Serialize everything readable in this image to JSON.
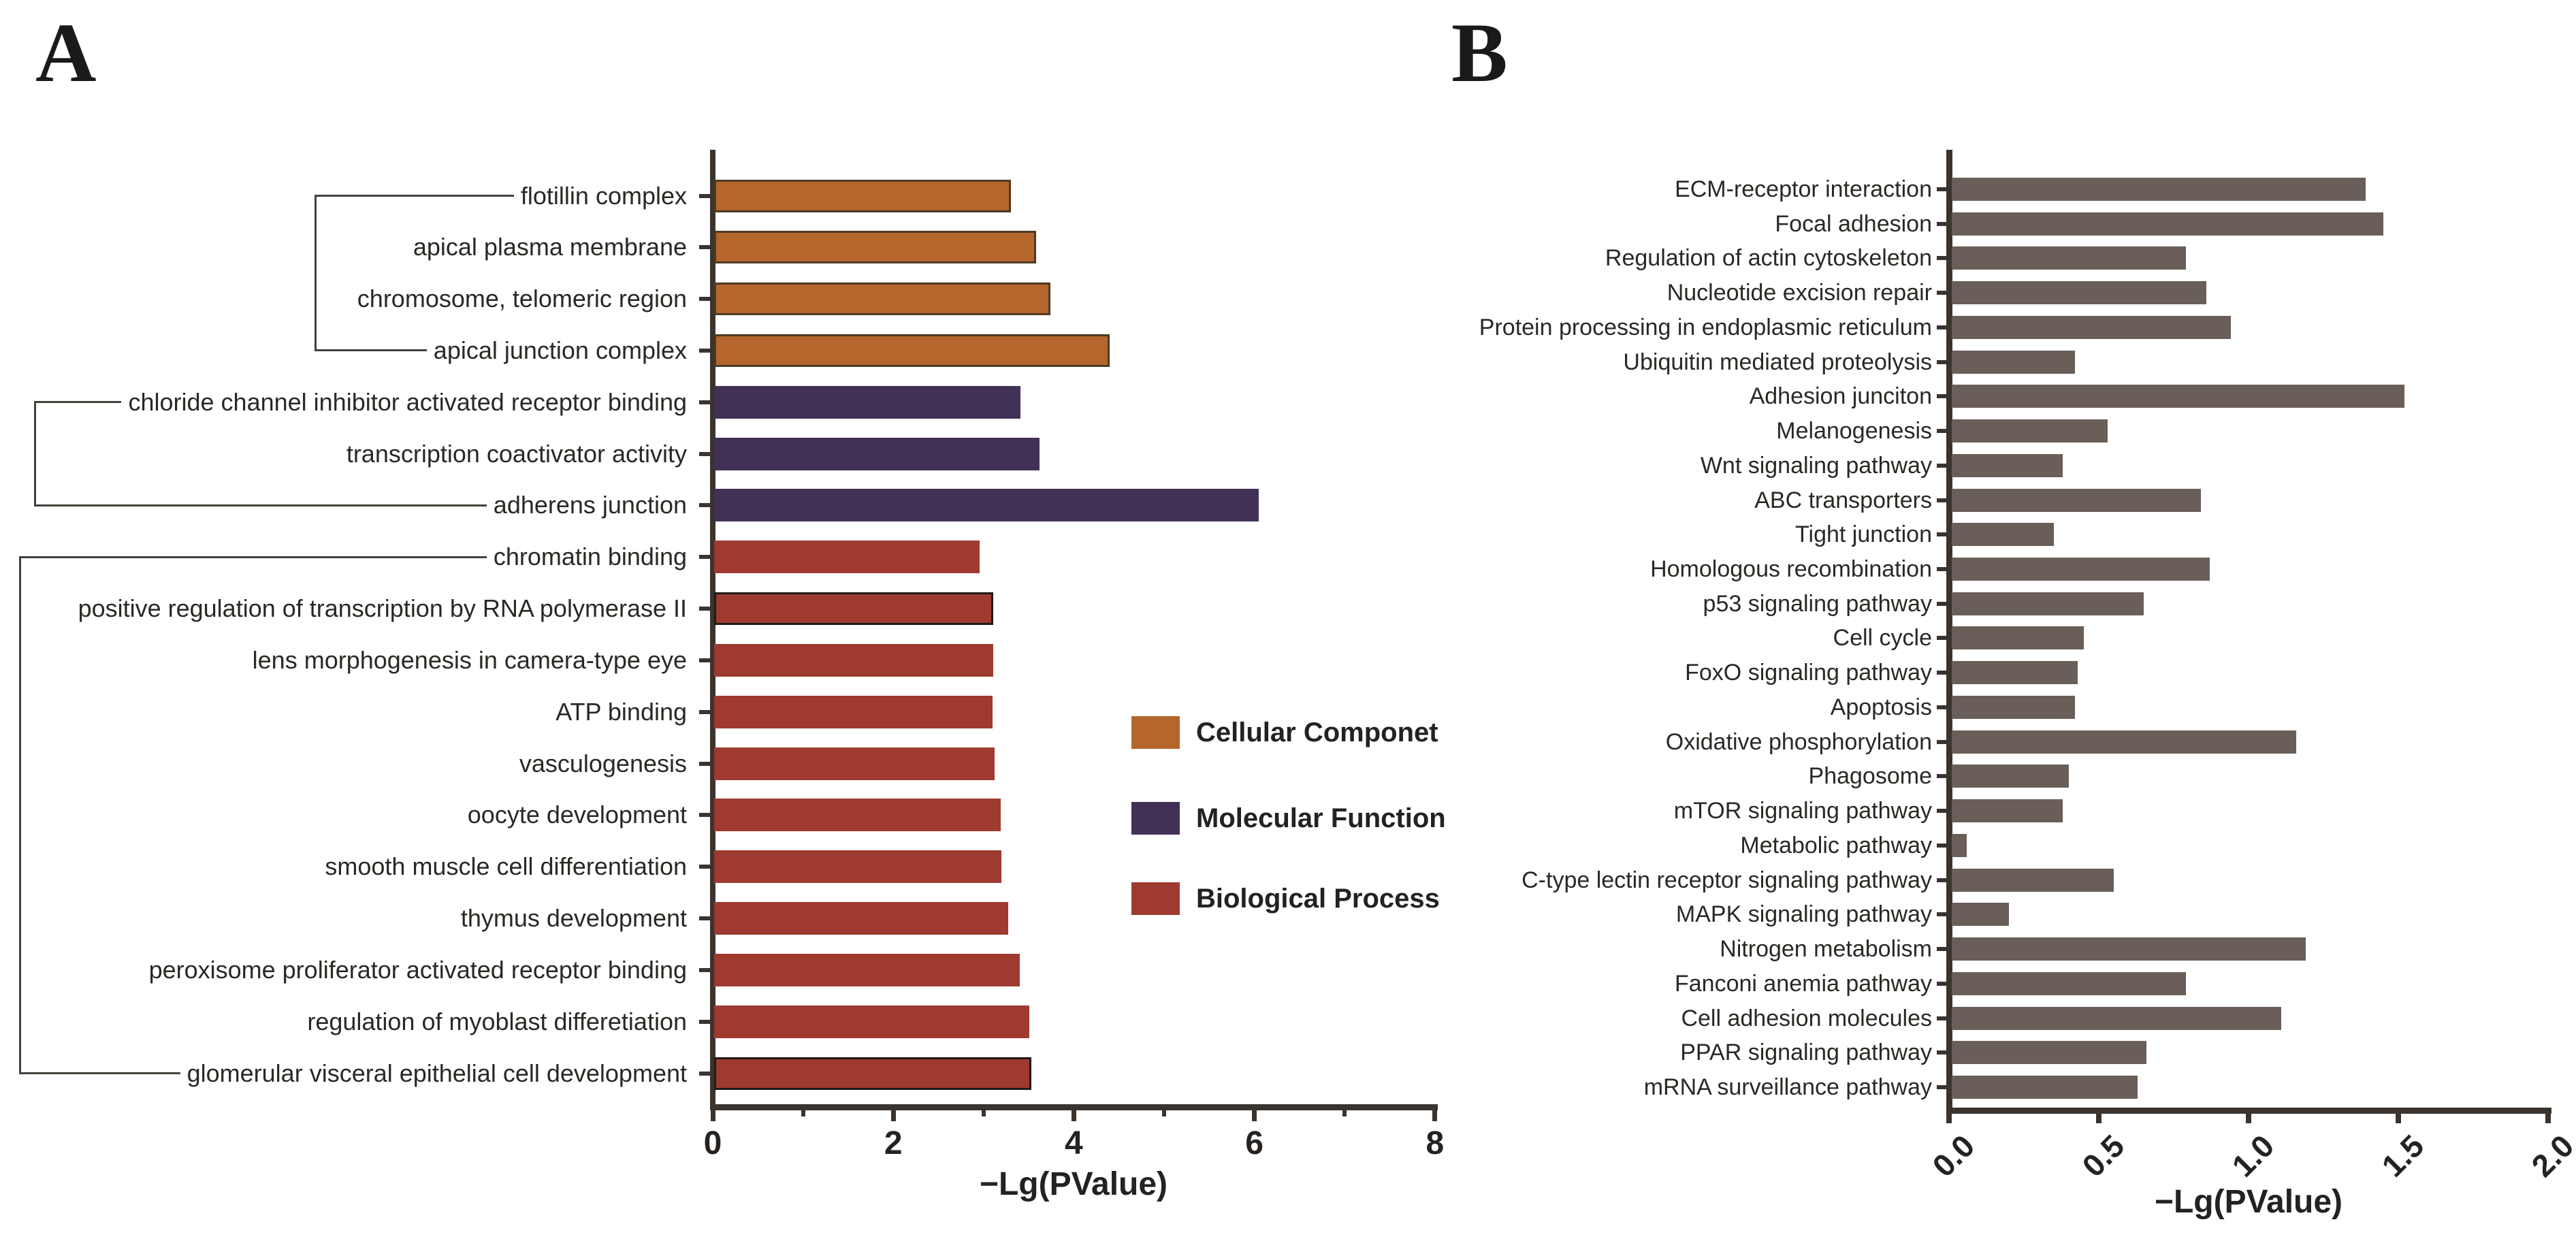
{
  "figure": {
    "description_colors": {
      "cellular_component_orange": "#b5662c",
      "molecular_function_purple": "#413156",
      "biological_process_red": "#9e3a30",
      "panel_b_bar_gray": "#695f58",
      "axis_dark": "#3b342e"
    }
  },
  "chart_data": [
    {
      "panel_label": "A",
      "type": "bar",
      "orientation": "horizontal",
      "xlabel": "−Lg(PValue)",
      "xlim": [
        0,
        8
      ],
      "xticks": [
        {
          "value": 0,
          "label": "0"
        },
        {
          "value": 2,
          "label": "2"
        },
        {
          "value": 4,
          "label": "4"
        },
        {
          "value": 6,
          "label": "6"
        },
        {
          "value": 8,
          "label": "8"
        }
      ],
      "minor_xticks": [
        1,
        3,
        5,
        7
      ],
      "grid": false,
      "legend_position": "right-middle",
      "groups": [
        {
          "id": "cc",
          "label": "Cellular Componet",
          "color": "#b5662c",
          "border": "#4d3a22"
        },
        {
          "id": "mf",
          "label": "Molecular Function",
          "color": "#413156",
          "border": ""
        },
        {
          "id": "bp",
          "label": "Biological Process",
          "color": "#9e3a30",
          "border": ""
        }
      ],
      "items": [
        {
          "label": "flotillin complex",
          "group": "cc",
          "value": 3.3
        },
        {
          "label": "apical plasma membrane",
          "group": "cc",
          "value": 3.58
        },
        {
          "label": "chromosome, telomeric region",
          "group": "cc",
          "value": 3.74
        },
        {
          "label": "apical junction complex",
          "group": "cc",
          "value": 4.4
        },
        {
          "label": "chloride channel inhibitor activated receptor binding",
          "group": "mf",
          "value": 3.41
        },
        {
          "label": "transcription coactivator activity",
          "group": "mf",
          "value": 3.62
        },
        {
          "label": "adherens junction",
          "group": "mf",
          "value": 6.05
        },
        {
          "label": "chromatin binding",
          "group": "bp",
          "value": 2.96
        },
        {
          "label": "positive regulation of transcription by RNA polymerase II",
          "group": "bp",
          "value": 3.11,
          "outline": true
        },
        {
          "label": "lens morphogenesis in camera-type eye",
          "group": "bp",
          "value": 3.11
        },
        {
          "label": "ATP binding",
          "group": "bp",
          "value": 3.1
        },
        {
          "label": "vasculogenesis",
          "group": "bp",
          "value": 3.12
        },
        {
          "label": "oocyte development",
          "group": "bp",
          "value": 3.19
        },
        {
          "label": "smooth muscle cell differentiation",
          "group": "bp",
          "value": 3.2
        },
        {
          "label": "thymus development",
          "group": "bp",
          "value": 3.27
        },
        {
          "label": "peroxisome proliferator activated receptor binding",
          "group": "bp",
          "value": 3.4
        },
        {
          "label": "regulation of myoblast differetiation",
          "group": "bp",
          "value": 3.51
        },
        {
          "label": "glomerular visceral epithelial cell development",
          "group": "bp",
          "value": 3.53,
          "outline": true
        }
      ]
    },
    {
      "panel_label": "B",
      "type": "bar",
      "orientation": "horizontal",
      "xlabel": "−Lg(PValue)",
      "xlim": [
        0,
        2
      ],
      "xticks": [
        {
          "value": 0,
          "label": "0.0"
        },
        {
          "value": 0.5,
          "label": "0.5"
        },
        {
          "value": 1,
          "label": "1.0"
        },
        {
          "value": 1.5,
          "label": "1.5"
        },
        {
          "value": 2,
          "label": "2.0"
        }
      ],
      "grid": false,
      "bar_color": "#695f58",
      "categories": [
        "ECM-receptor interaction",
        "Focal adhesion",
        "Regulation of actin cytoskeleton",
        "Nucleotide excision repair",
        "Protein processing in endoplasmic reticulum",
        "Ubiquitin mediated proteolysis",
        "Adhesion junciton",
        "Melanogenesis",
        "Wnt signaling pathway",
        "ABC transporters",
        "Tight junction",
        "Homologous recombination",
        "p53 signaling pathway",
        "Cell cycle",
        "FoxO signaling pathway",
        "Apoptosis",
        "Oxidative phosphorylation",
        "Phagosome",
        "mTOR signaling pathway",
        "Metabolic pathway",
        "C-type lectin receptor signaling pathway",
        "MAPK signaling pathway",
        "Nitrogen metabolism",
        "Fanconi anemia pathway",
        "Cell adhesion molecules",
        "PPAR signaling pathway",
        "mRNA surveillance pathway"
      ],
      "values": [
        1.39,
        1.45,
        0.79,
        0.86,
        0.94,
        0.42,
        1.52,
        0.53,
        0.38,
        0.84,
        0.35,
        0.87,
        0.65,
        0.45,
        0.43,
        0.42,
        1.16,
        0.4,
        0.38,
        0.06,
        0.55,
        0.2,
        1.19,
        0.79,
        1.11,
        0.66,
        0.63
      ]
    }
  ]
}
